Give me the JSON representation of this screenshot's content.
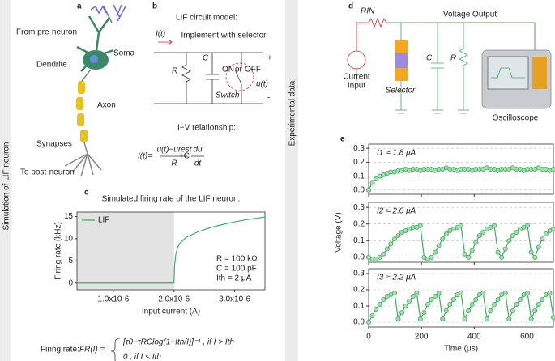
{
  "side_labels": [
    "Simulation of LIF neuron",
    "Experimental data"
  ],
  "panel_labels": [
    "a",
    "b",
    "c",
    "d",
    "e"
  ],
  "panel_a": {
    "parts": [
      "From pre-neuron",
      "Dendrite",
      "Soma",
      "Axon",
      "Synapses",
      "To post-neuron"
    ]
  },
  "panel_b": {
    "title": "LIF circuit model:",
    "current": "I(t)",
    "note": "Implement with selector",
    "R": "R",
    "C": "C",
    "on": "ON",
    "or": "or",
    "off": "OFF",
    "u": "u(t)",
    "plus": "+",
    "minus": "-",
    "switch": "Switch",
    "iv_title": "I−V relationship:",
    "iv_lhs": "I(t)=",
    "iv_num": "u(t)−urest",
    "iv_den": "R",
    "iv_plus": "+C",
    "iv_dnum": "du",
    "iv_dden": "dt"
  },
  "panel_d": {
    "rin": "RIN",
    "output": "Voltage Output",
    "input": [
      "Current",
      "Input"
    ],
    "selector": "Selector",
    "C": "C",
    "R": "R",
    "scope": "Oscilloscope"
  },
  "firing_rate": {
    "label": "Firing rate:",
    "lhs": "FR(I) =",
    "case1": "[τ0−τRClog(1−Ith/I)]⁻¹ , if I > Ith",
    "case2": "0                                  , if I < Ith"
  },
  "chart_data": [
    {
      "type": "line",
      "title": "Simulated firing rate of the LIF neuron:",
      "x_label": "Input current (A)",
      "y_label": "Firing rate (kHz)",
      "x": [
        4e-07,
        1e-06,
        1.5e-06,
        1.99e-06,
        2e-06,
        2.01e-06,
        2.03e-06,
        2.06e-06,
        2.1e-06,
        2.2e-06,
        2.4e-06,
        2.6e-06,
        2.8e-06,
        3e-06,
        3.2e-06,
        3.5e-06
      ],
      "series": [
        {
          "name": "LIF",
          "color": "#3dae5e",
          "values": [
            0,
            0,
            0,
            0,
            0,
            4,
            6.5,
            8,
            9,
            10.3,
            11.6,
            12.5,
            13.2,
            13.8,
            14.3,
            14.9
          ]
        }
      ],
      "xlim": [
        4e-07,
        3.5e-06
      ],
      "ylim": [
        -1.5,
        16
      ],
      "xticks": [
        {
          "value": 1e-06,
          "label": "1.0x10-6"
        },
        {
          "value": 2e-06,
          "label": "2.0x10-6"
        },
        {
          "value": 3e-06,
          "label": "3.0x10-6"
        }
      ],
      "yticks": [
        0,
        5,
        10,
        15
      ],
      "shaded_xlim": [
        4e-07,
        2e-06
      ],
      "legend": "upper left",
      "annotations": [
        "R = 100 kΩ",
        "C = 100 pF",
        "Ith = 2 μA"
      ]
    },
    {
      "type": "line",
      "markers": true,
      "grid": true,
      "annotation": "I1 ≈ 1.8 μA",
      "x": [
        0,
        14,
        28,
        42,
        56,
        70,
        84,
        98,
        112,
        126,
        140,
        154,
        168,
        182,
        196,
        210,
        224,
        238,
        252,
        266,
        280,
        294,
        308,
        322,
        336,
        350,
        364,
        378,
        392,
        406,
        420,
        434,
        448,
        462,
        476,
        490,
        504,
        518,
        532,
        546,
        560,
        574,
        588,
        602,
        616,
        630,
        644,
        658,
        672,
        686,
        700
      ],
      "series": [
        {
          "color": "#3dae5e",
          "values": [
            0.0,
            0.05,
            0.08,
            0.1,
            0.11,
            0.12,
            0.13,
            0.13,
            0.14,
            0.14,
            0.15,
            0.14,
            0.15,
            0.15,
            0.14,
            0.15,
            0.15,
            0.15,
            0.14,
            0.15,
            0.15,
            0.16,
            0.15,
            0.15,
            0.14,
            0.15,
            0.15,
            0.15,
            0.14,
            0.15,
            0.15,
            0.15,
            0.16,
            0.15,
            0.15,
            0.14,
            0.15,
            0.15,
            0.15,
            0.16,
            0.15,
            0.15,
            0.14,
            0.15,
            0.15,
            0.15,
            0.16,
            0.15,
            0.15,
            0.14,
            0.15
          ]
        }
      ],
      "xlim": [
        0,
        700
      ],
      "ylim": [
        -0.03,
        0.33
      ],
      "yticks": [
        {
          "value": 0,
          "label": "0.0"
        },
        0.1,
        0.2,
        0.3
      ]
    },
    {
      "type": "line",
      "markers": true,
      "grid": true,
      "annotation": "I2 ≈ 2.0 μA",
      "y_label": "Voltage (V)",
      "x": [
        0,
        14,
        28,
        42,
        56,
        70,
        84,
        98,
        112,
        126,
        140,
        154,
        168,
        182,
        196,
        210,
        224,
        238,
        252,
        266,
        280,
        294,
        308,
        322,
        336,
        350,
        364,
        378,
        392,
        406,
        420,
        434,
        448,
        462,
        476,
        490,
        504,
        518,
        532,
        546,
        560,
        574,
        588,
        602,
        616,
        630,
        644,
        658,
        672,
        686,
        700
      ],
      "series": [
        {
          "color": "#3dae5e",
          "values": [
            0.0,
            -0.01,
            -0.01,
            0.0,
            0.02,
            0.05,
            0.08,
            0.11,
            0.13,
            0.15,
            0.16,
            0.17,
            0.18,
            0.18,
            0.19,
            0.0,
            -0.01,
            0.0,
            0.03,
            0.07,
            0.11,
            0.14,
            0.16,
            0.17,
            0.18,
            0.19,
            0.02,
            0.0,
            0.04,
            0.09,
            0.13,
            0.15,
            0.17,
            0.18,
            0.19,
            0.03,
            0.0,
            0.05,
            0.1,
            0.13,
            0.15,
            0.17,
            0.18,
            0.19,
            0.03,
            0.0,
            0.06,
            0.11,
            0.14,
            0.16,
            0.17
          ]
        }
      ],
      "xlim": [
        0,
        700
      ],
      "ylim": [
        -0.03,
        0.33
      ],
      "yticks": [
        {
          "value": 0,
          "label": "0.0"
        },
        0.1,
        0.2,
        0.3
      ]
    },
    {
      "type": "line",
      "markers": true,
      "grid": true,
      "annotation": "I3 ≈ 2.2 μA",
      "x_label": "Time (μs)",
      "x": [
        0,
        14,
        28,
        42,
        56,
        70,
        84,
        98,
        112,
        126,
        140,
        154,
        168,
        182,
        196,
        210,
        224,
        238,
        252,
        266,
        280,
        294,
        308,
        322,
        336,
        350,
        364,
        378,
        392,
        406,
        420,
        434,
        448,
        462,
        476,
        490,
        504,
        518,
        532,
        546,
        560,
        574,
        588,
        602,
        616,
        630,
        644,
        658,
        672,
        686,
        700
      ],
      "series": [
        {
          "color": "#3dae5e",
          "values": [
            0.0,
            0.04,
            0.08,
            0.11,
            0.14,
            0.16,
            0.17,
            0.18,
            0.02,
            0.06,
            0.1,
            0.13,
            0.16,
            0.18,
            0.02,
            0.06,
            0.11,
            0.14,
            0.16,
            0.18,
            0.02,
            0.07,
            0.11,
            0.14,
            0.17,
            0.18,
            0.02,
            0.07,
            0.11,
            0.14,
            0.17,
            0.18,
            0.02,
            0.07,
            0.11,
            0.14,
            0.17,
            0.18,
            0.02,
            0.07,
            0.11,
            0.14,
            0.17,
            0.18,
            0.02,
            0.07,
            0.11,
            0.14,
            0.17,
            0.18,
            0.03
          ]
        }
      ],
      "xlim": [
        0,
        700
      ],
      "ylim": [
        -0.03,
        0.33
      ],
      "yticks": [
        {
          "value": 0,
          "label": "0.0"
        },
        0.1,
        0.2,
        0.3
      ],
      "xticks": [
        0,
        200,
        400,
        600
      ]
    }
  ]
}
